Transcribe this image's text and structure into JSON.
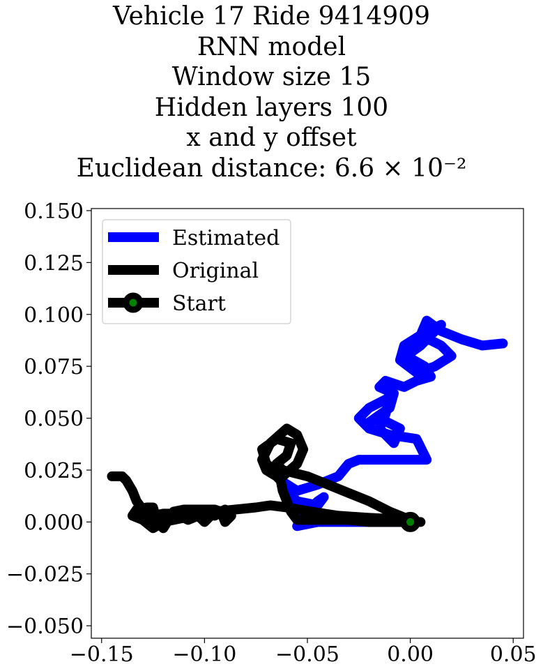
{
  "chart_data": {
    "type": "line",
    "title_lines": [
      "Vehicle 17 Ride 9414909",
      "RNN model",
      "Window size 15",
      "Hidden layers 100",
      "x and y offset",
      "Euclidean distance: 6.6 × 10⁻²"
    ],
    "xlabel": "",
    "ylabel": "",
    "xlim": [
      -0.155,
      0.055
    ],
    "ylim": [
      -0.056,
      0.151
    ],
    "x_ticks": [
      -0.15,
      -0.1,
      -0.05,
      0.0,
      0.05
    ],
    "x_tick_labels": [
      "−0.15",
      "−0.10",
      "−0.05",
      "0.00",
      "0.05"
    ],
    "y_ticks": [
      0.15,
      0.125,
      0.1,
      0.075,
      0.05,
      0.025,
      0.0,
      -0.025,
      -0.05
    ],
    "y_tick_labels": [
      "0.150",
      "0.125",
      "0.100",
      "0.075",
      "0.050",
      "0.025",
      "0.000",
      "−0.025",
      "−0.050"
    ],
    "grid": false,
    "legend_position": "top-left",
    "series": [
      {
        "name": "Estimated",
        "color": "#0000ff",
        "x": [
          0.0,
          -0.01,
          -0.03,
          -0.045,
          -0.055,
          -0.05,
          -0.045,
          -0.042,
          -0.045,
          -0.055,
          -0.06,
          -0.063,
          -0.055,
          -0.045,
          -0.035,
          -0.03,
          -0.025,
          -0.02,
          -0.01,
          0.0,
          0.008,
          0.003,
          -0.01,
          -0.02,
          -0.025,
          -0.02,
          -0.01,
          -0.012,
          -0.015,
          -0.008,
          -0.005,
          -0.015,
          -0.02,
          -0.01,
          -0.008,
          -0.015,
          -0.012,
          -0.003,
          0.003,
          0.01,
          0.007,
          -0.002,
          0.005,
          0.01,
          0.015,
          0.005,
          -0.003,
          -0.005,
          0.003,
          0.012,
          0.02,
          0.015,
          0.005,
          0.008,
          0.015,
          0.025,
          0.035,
          0.045
        ],
        "y": [
          0.0,
          0.0,
          0.0,
          0.0,
          -0.002,
          0.005,
          0.01,
          0.012,
          0.008,
          0.01,
          0.015,
          0.02,
          0.015,
          0.018,
          0.022,
          0.028,
          0.03,
          0.03,
          0.03,
          0.03,
          0.03,
          0.04,
          0.042,
          0.045,
          0.05,
          0.055,
          0.06,
          0.052,
          0.045,
          0.038,
          0.045,
          0.05,
          0.048,
          0.055,
          0.062,
          0.065,
          0.068,
          0.065,
          0.068,
          0.07,
          0.075,
          0.08,
          0.085,
          0.09,
          0.095,
          0.09,
          0.085,
          0.078,
          0.072,
          0.075,
          0.08,
          0.085,
          0.09,
          0.097,
          0.092,
          0.088,
          0.085,
          0.086
        ]
      },
      {
        "name": "Original",
        "color": "#000000",
        "x": [
          0.005,
          -0.01,
          -0.02,
          -0.03,
          -0.045,
          -0.055,
          -0.058,
          -0.06,
          -0.062,
          -0.063,
          -0.065,
          -0.07,
          -0.072,
          -0.068,
          -0.06,
          -0.055,
          -0.052,
          -0.055,
          -0.062,
          -0.07,
          -0.072,
          -0.065,
          -0.058,
          -0.06,
          -0.065,
          -0.062,
          -0.05,
          -0.04,
          -0.03,
          -0.02,
          -0.01,
          0.0,
          -0.02,
          -0.035,
          -0.048,
          -0.06,
          -0.068,
          -0.075,
          -0.085,
          -0.095,
          -0.1,
          -0.103,
          -0.108,
          -0.11,
          -0.115,
          -0.12,
          -0.125,
          -0.13,
          -0.135,
          -0.133,
          -0.128,
          -0.125,
          -0.123,
          -0.12,
          -0.115,
          -0.11,
          -0.105,
          -0.1,
          -0.095,
          -0.092,
          -0.09,
          -0.087,
          -0.09,
          -0.095,
          -0.1,
          -0.11,
          -0.12,
          -0.13,
          -0.13,
          -0.133,
          -0.135,
          -0.138,
          -0.14,
          -0.145
        ],
        "y": [
          0.0,
          0.0,
          0.0,
          0.001,
          0.001,
          0.001,
          0.005,
          0.01,
          0.015,
          0.02,
          0.022,
          0.025,
          0.03,
          0.038,
          0.045,
          0.042,
          0.035,
          0.028,
          0.022,
          0.028,
          0.035,
          0.04,
          0.038,
          0.032,
          0.028,
          0.025,
          0.022,
          0.018,
          0.014,
          0.01,
          0.005,
          0.001,
          0.002,
          0.003,
          0.005,
          0.007,
          0.008,
          0.007,
          0.006,
          0.005,
          0.0,
          0.003,
          0.001,
          0.002,
          0.001,
          0.0,
          -0.003,
          0.001,
          0.003,
          0.006,
          0.007,
          0.007,
          0.0,
          -0.003,
          0.005,
          0.006,
          0.006,
          0.006,
          0.006,
          0.005,
          0.0,
          0.003,
          0.006,
          0.003,
          0.004,
          0.004,
          0.004,
          0.002,
          0.006,
          0.01,
          0.015,
          0.02,
          0.022,
          0.022
        ]
      }
    ],
    "start_marker": {
      "name": "Start",
      "x": 0.0,
      "y": 0.0,
      "edge_color": "#000000",
      "face_color": "#008000"
    },
    "legend": [
      {
        "label": "Estimated",
        "color": "#0000ff",
        "marker": false
      },
      {
        "label": "Original",
        "color": "#000000",
        "marker": false
      },
      {
        "label": "Start",
        "color": "#000000",
        "marker": true,
        "marker_face": "#008000"
      }
    ]
  }
}
